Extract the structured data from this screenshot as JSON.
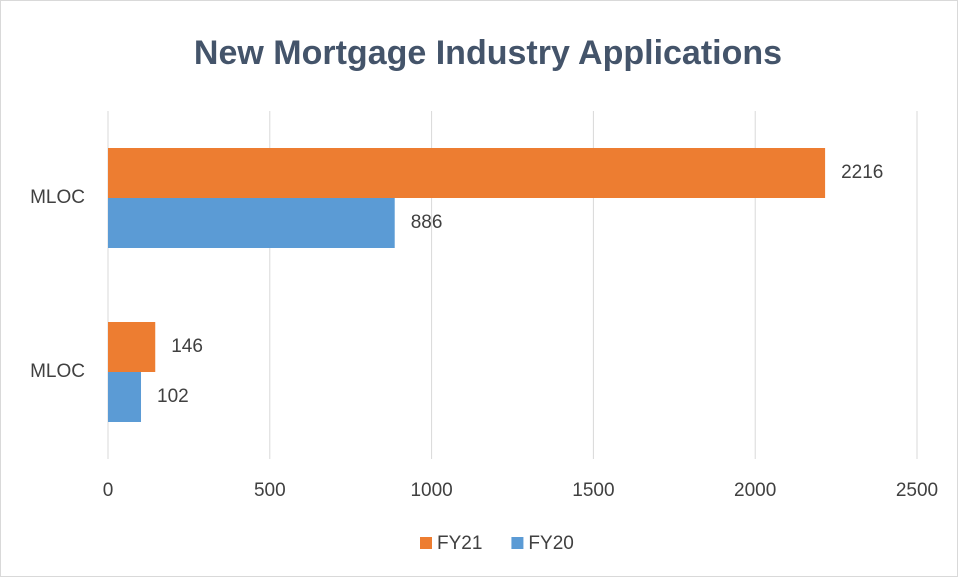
{
  "chart_data": {
    "type": "hbar",
    "title": "New Mortgage Industry Applications",
    "categories": [
      "MLOC",
      "MLOC"
    ],
    "series": [
      {
        "name": "FY21",
        "color": "#ed7d31",
        "values": [
          2216,
          146
        ]
      },
      {
        "name": "FY20",
        "color": "#5b9bd5",
        "values": [
          886,
          102
        ]
      }
    ],
    "xlim": [
      0,
      2500
    ],
    "xticks": [
      0,
      500,
      1000,
      1500,
      2000,
      2500
    ],
    "grid": true,
    "legend": "bottom"
  }
}
